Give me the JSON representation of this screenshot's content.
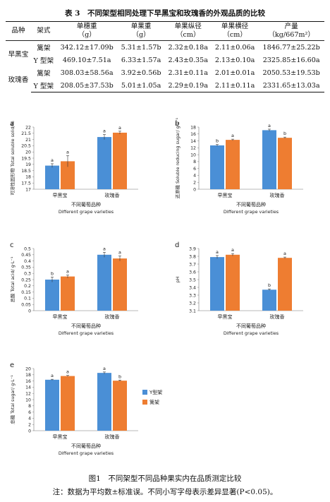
{
  "table": {
    "caption": "表 3　不同架型相同处理下早黑宝和玫瑰香的外观品质的比较",
    "headers": [
      {
        "main": "品种",
        "sub": ""
      },
      {
        "main": "架式",
        "sub": ""
      },
      {
        "main": "单穗重",
        "sub": "（g）"
      },
      {
        "main": "单果重",
        "sub": "（g）"
      },
      {
        "main": "单果纵径",
        "sub": "（cm）"
      },
      {
        "main": "单果横径",
        "sub": "（cm）"
      },
      {
        "main": "产量",
        "sub": "（kg/667m²）"
      }
    ],
    "groups": [
      {
        "variety": "早黑宝",
        "rows": [
          {
            "system": "篱架",
            "cells": [
              "342.12±17.09b",
              "5.31±1.57b",
              "2.32±0.18a",
              "2.11±0.06a",
              "1846.77±25.22b"
            ]
          },
          {
            "system": "Y 型架",
            "cells": [
              "469.10±7.51a",
              "6.33±1.57a",
              "2.43±0.35a",
              "2.13±0.10a",
              "2325.85±16.60a"
            ]
          }
        ]
      },
      {
        "variety": "玫瑰香",
        "rows": [
          {
            "system": "篱架",
            "cells": [
              "308.03±58.56a",
              "3.92±0.56b",
              "2.31±0.11a",
              "2.01±0.01a",
              "2050.53±19.53b"
            ]
          },
          {
            "system": "Y 型架",
            "cells": [
              "208.05±37.53b",
              "5.01±1.05a",
              "2.29±0.19a",
              "2.11±0.11a",
              "2331.65±13.03a"
            ]
          }
        ]
      }
    ]
  },
  "colors": {
    "y_trellis": "#4a8fd6",
    "hedgerow": "#ee7d31"
  },
  "legend": {
    "y_label": "Y型架",
    "hedge_label": "篱架"
  },
  "chart_data": [
    {
      "type": "bar",
      "panel": "a",
      "categories": [
        "早黑宝",
        "玫瑰香"
      ],
      "ylabel": "可溶性固形物 Total soluble solid/%",
      "xlabel_cn": "不同葡萄品种",
      "xlabel_en": "Different grape varieties",
      "ylim": [
        17,
        22
      ],
      "yticks": [
        "17",
        "17.5",
        "18",
        "18.5",
        "19",
        "19.5",
        "20",
        "20.5",
        "21",
        "21.5",
        "22"
      ],
      "series": [
        {
          "name": "Y型架",
          "values": [
            18.9,
            21.2
          ],
          "errors": [
            0.15,
            0.2
          ],
          "letters": [
            "a",
            "a"
          ]
        },
        {
          "name": "篱架",
          "values": [
            19.25,
            21.55
          ],
          "errors": [
            0.45,
            0.12
          ],
          "letters": [
            "a",
            "a"
          ]
        }
      ]
    },
    {
      "type": "bar",
      "panel": "b",
      "categories": [
        "早黑宝",
        "玫瑰香"
      ],
      "ylabel": "还原糖 Soluble reducing sugar/ g·L⁻¹",
      "xlabel_cn": "不同葡萄品种",
      "xlabel_en": "Different grape varieties",
      "ylim": [
        0,
        18
      ],
      "yticks": [
        "0",
        "2",
        "4",
        "6",
        "8",
        "10",
        "12",
        "14",
        "16",
        "18"
      ],
      "series": [
        {
          "name": "Y型架",
          "values": [
            12.7,
            17.1
          ],
          "errors": [
            0.25,
            0.3
          ],
          "letters": [
            "b",
            "a"
          ]
        },
        {
          "name": "篱架",
          "values": [
            14.3,
            14.9
          ],
          "errors": [
            0.2,
            0.2
          ],
          "letters": [
            "a",
            "b"
          ]
        }
      ]
    },
    {
      "type": "bar",
      "panel": "c",
      "categories": [
        "早黑宝",
        "玫瑰香"
      ],
      "ylabel": "总酸 Total acid/ g·L⁻¹",
      "xlabel_cn": "不同葡萄品种",
      "xlabel_en": "Different grape varieties",
      "ylim": [
        0,
        0.5
      ],
      "yticks": [
        "0",
        "0.05",
        "0.1",
        "0.15",
        "0.2",
        "0.25",
        "0.3",
        "0.35",
        "0.4",
        "0.45",
        "0.5"
      ],
      "series": [
        {
          "name": "Y型架",
          "values": [
            0.25,
            0.45
          ],
          "errors": [
            0.02,
            0.02
          ],
          "letters": [
            "b",
            "a"
          ]
        },
        {
          "name": "篱架",
          "values": [
            0.275,
            0.42
          ],
          "errors": [
            0.012,
            0.02
          ],
          "letters": [
            "a",
            "a"
          ]
        }
      ]
    },
    {
      "type": "bar",
      "panel": "d",
      "categories": [
        "早黑宝",
        "玫瑰香"
      ],
      "ylabel": "pH",
      "xlabel_cn": "不同葡萄品种",
      "xlabel_en": "Different grape varieties",
      "ylim": [
        3.1,
        3.9
      ],
      "yticks": [
        "3.1",
        "3.2",
        "3.3",
        "3.4",
        "3.5",
        "3.6",
        "3.7",
        "3.8",
        "3.9"
      ],
      "series": [
        {
          "name": "Y型架",
          "values": [
            3.79,
            3.37
          ],
          "errors": [
            0.02,
            0.01
          ],
          "letters": [
            "a",
            "b"
          ]
        },
        {
          "name": "篱架",
          "values": [
            3.82,
            3.78
          ],
          "errors": [
            0.015,
            0.01
          ],
          "letters": [
            "a",
            "a"
          ]
        }
      ]
    },
    {
      "type": "bar",
      "panel": "e",
      "categories": [
        "早黑宝",
        "玫瑰香"
      ],
      "ylabel": "总糖 Total sugar/ g·L⁻¹",
      "xlabel_cn": "不同葡萄品种",
      "xlabel_en": "Different grape varieties",
      "ylim": [
        0,
        20
      ],
      "yticks": [
        "0",
        "2",
        "4",
        "6",
        "8",
        "10",
        "12",
        "14",
        "16",
        "18",
        "20"
      ],
      "series": [
        {
          "name": "Y型架",
          "values": [
            16.4,
            18.6
          ],
          "errors": [
            0.15,
            0.3
          ],
          "letters": [
            "a",
            "a"
          ]
        },
        {
          "name": "篱架",
          "values": [
            17.6,
            16.1
          ],
          "errors": [
            0.2,
            0.2
          ],
          "letters": [
            "a",
            "b"
          ]
        }
      ]
    }
  ],
  "figure": {
    "caption": "图1　不同架型不同品种果实内在品质测定比较",
    "note": "注：数据为平均数±标准误。不同小写字母表示差异显著(P<0.05)。"
  }
}
